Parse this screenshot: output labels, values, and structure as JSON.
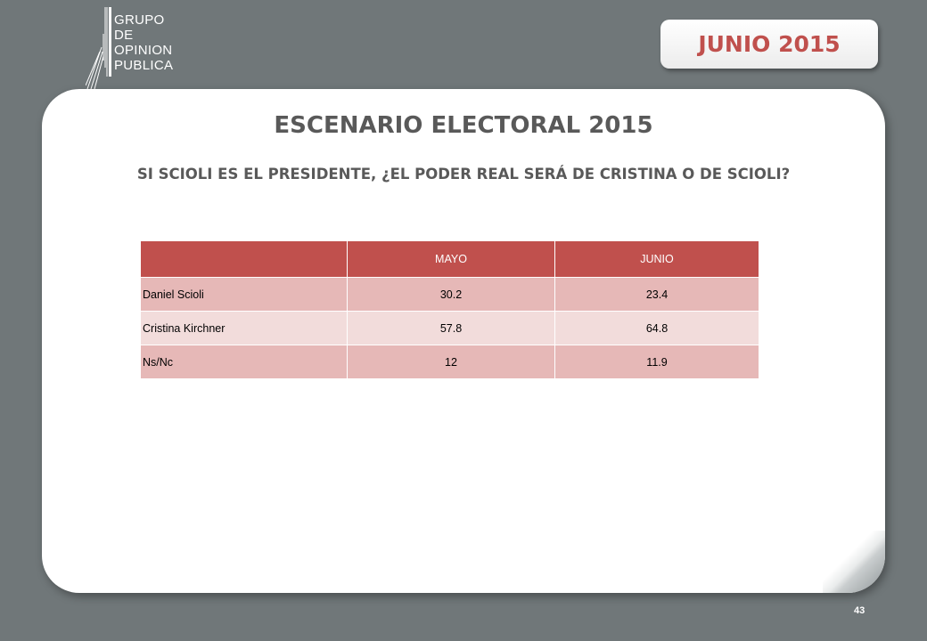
{
  "logo": {
    "lines": [
      "GRUPO",
      "DE",
      "OPINION",
      "PUBLICA"
    ]
  },
  "badge": {
    "label": "JUNIO 2015"
  },
  "title": "ESCENARIO ELECTORAL 2015",
  "subtitle": "SI SCIOLI ES EL PRESIDENTE, ¿EL PODER REAL SERÁ DE CRISTINA O DE SCIOLI?",
  "table": {
    "headers": [
      "",
      "MAYO",
      "JUNIO"
    ],
    "rows": [
      [
        "Daniel Scioli",
        "30.2",
        "23.4"
      ],
      [
        "Cristina Kirchner",
        "57.8",
        "64.8"
      ],
      [
        "Ns/Nc",
        "12",
        "11.9"
      ]
    ]
  },
  "page_number": "43",
  "colors": {
    "background": "#707779",
    "accent": "#c0504d",
    "row_dark": "#e6b8b7",
    "row_light": "#f2dcdb",
    "heading_text": "#595959"
  }
}
